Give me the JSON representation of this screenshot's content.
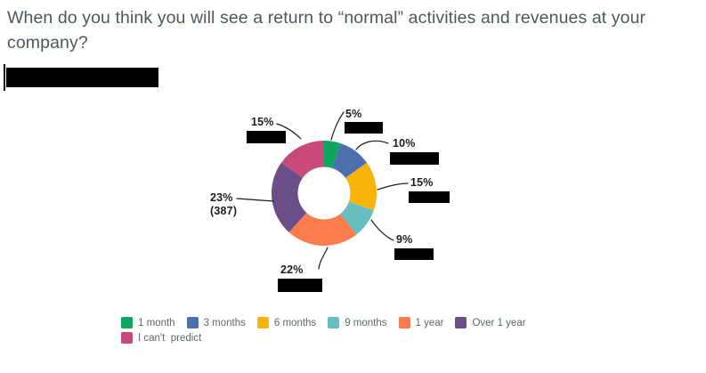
{
  "header": {
    "question": "When do you think you will see a return to “normal” activities and revenues at your company?"
  },
  "chart_data": {
    "type": "pie",
    "subtype": "donut",
    "title": "When do you think you will see a return to “normal” activities and revenues at your company?",
    "categories": [
      "1 month",
      "3 months",
      "6 months",
      "9 months",
      "1 year",
      "Over 1 year",
      "I can't  predict"
    ],
    "values": [
      5,
      10,
      15,
      9,
      22,
      23,
      15
    ],
    "unit": "%",
    "colors": [
      "#0ea55c",
      "#4c70ae",
      "#f8b409",
      "#66bfbe",
      "#fb7c4f",
      "#6b4d87",
      "#c9497b"
    ],
    "slice_labels": [
      "5%",
      "10%",
      "15%",
      "9%",
      "22%",
      "23%",
      "15%"
    ],
    "annotations": {
      "over_1_year_count": "(387)"
    },
    "donut_hole_ratio": 0.5,
    "legend_position": "bottom"
  }
}
